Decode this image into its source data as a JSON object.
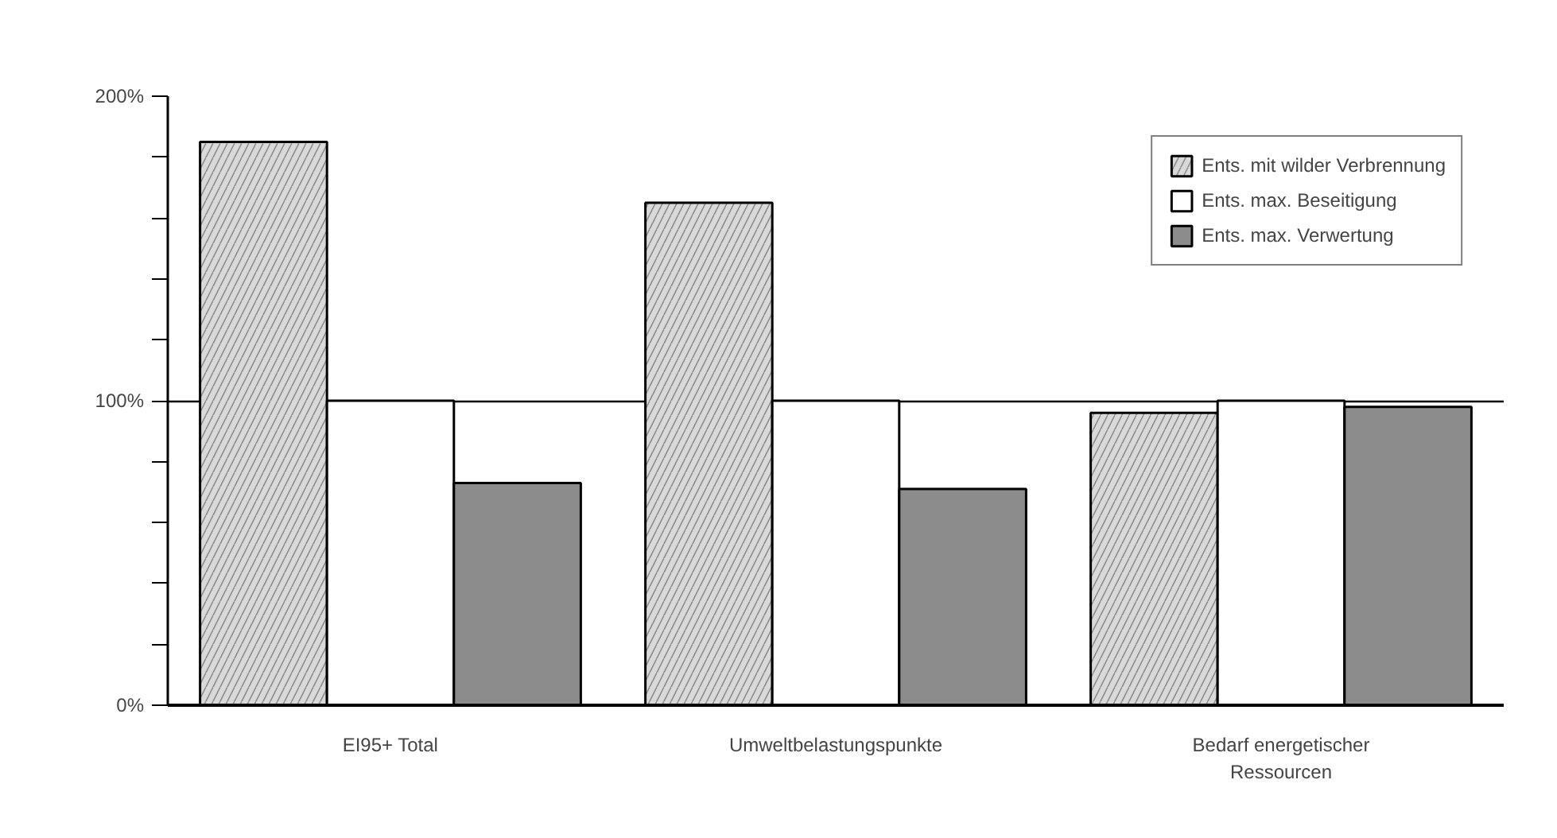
{
  "chart_data": {
    "type": "bar",
    "categories": [
      "EI95+ Total",
      "Umweltbelastungspunkte",
      "Bedarf energetischer\nRessourcen"
    ],
    "series": [
      {
        "name": "Ents. mit wilder Verbrennung",
        "color": "#d9d9d9",
        "values": [
          185,
          165,
          96
        ]
      },
      {
        "name": "Ents. max. Beseitigung",
        "color": "#ffffff",
        "values": [
          100,
          100,
          100
        ]
      },
      {
        "name": "Ents. max. Verwertung",
        "color": "#8c8c8c",
        "values": [
          73,
          71,
          98
        ]
      }
    ],
    "ylim": [
      0,
      200
    ],
    "yticks": [
      {
        "value": 0,
        "label": "0%"
      },
      {
        "value": 20,
        "label": null
      },
      {
        "value": 40,
        "label": null
      },
      {
        "value": 60,
        "label": null
      },
      {
        "value": 80,
        "label": null
      },
      {
        "value": 100,
        "label": "100%"
      },
      {
        "value": 120,
        "label": null
      },
      {
        "value": 140,
        "label": null
      },
      {
        "value": 160,
        "label": null
      },
      {
        "value": 180,
        "label": null
      },
      {
        "value": 200,
        "label": "200%"
      }
    ],
    "grid": "y",
    "legend": "top right"
  }
}
